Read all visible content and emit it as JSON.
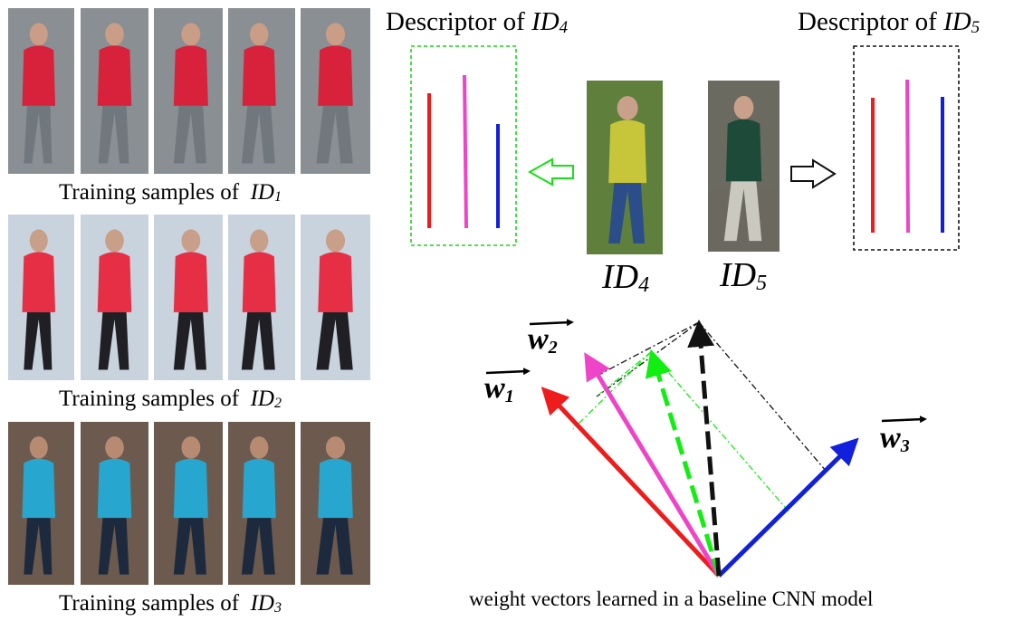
{
  "training_rows": [
    {
      "caption_prefix": "Training samples of",
      "id_letters": "ID",
      "id_sub": "1",
      "palette": {
        "bg": "#8a8f93",
        "top": "#d8213a",
        "legs": "#70787e",
        "skin": "#c99d86"
      }
    },
    {
      "caption_prefix": "Training samples of",
      "id_letters": "ID",
      "id_sub": "2",
      "palette": {
        "bg": "#c9d3de",
        "top": "#e62f44",
        "legs": "#1f1f24",
        "skin": "#c8a08a"
      }
    },
    {
      "caption_prefix": "Training samples of",
      "id_letters": "ID",
      "id_sub": "3",
      "palette": {
        "bg": "#6d5a4e",
        "top": "#27a7cf",
        "legs": "#1d2a3e",
        "skin": "#b78a72"
      }
    }
  ],
  "descriptor_left": {
    "prefix": "Descriptor of",
    "id_letters": "ID",
    "id_sub": "4",
    "border_color": "#18d618"
  },
  "descriptor_right": {
    "prefix": "Descriptor of",
    "id_letters": "ID",
    "id_sub": "5",
    "border_color": "#111111"
  },
  "id4_label": {
    "letters": "ID",
    "sub": "4"
  },
  "id5_label": {
    "letters": "ID",
    "sub": "5"
  },
  "weight_labels": {
    "w1": {
      "letters": "w",
      "sub": "1"
    },
    "w2": {
      "letters": "w",
      "sub": "2"
    },
    "w3": {
      "letters": "w",
      "sub": "3"
    }
  },
  "bottom_caption": "weight vectors learned in a baseline CNN model",
  "colors": {
    "w1": "#ee1c1c",
    "w2": "#ee44c8",
    "w3": "#1020dd",
    "id4": "#11ee11",
    "id5": "#111111"
  }
}
